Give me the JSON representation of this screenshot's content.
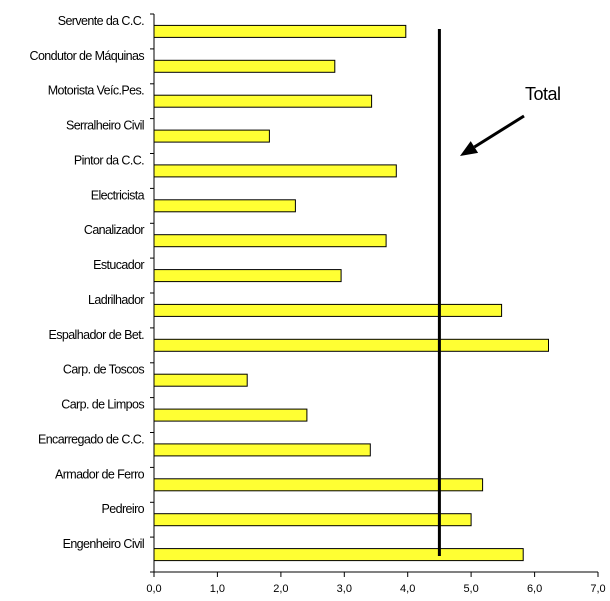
{
  "chart_data": {
    "type": "bar",
    "orientation": "horizontal",
    "categories": [
      "Servente da C.C.",
      "Condutor de Máquinas",
      "Motorista Veíc.Pes.",
      "Serralheiro Civil",
      "Pintor da C.C.",
      "Electricista",
      "Canalizador",
      "Estucador",
      "Ladrilhador",
      "Espalhador de Bet.",
      "Carp. de Toscos",
      "Carp. de Limpos",
      "Encarregado de C.C.",
      "Armador de Ferro",
      "Pedreiro",
      "Engenheiro Civil"
    ],
    "values": [
      3.97,
      2.85,
      3.43,
      1.82,
      3.82,
      2.23,
      3.66,
      2.95,
      5.48,
      6.22,
      1.47,
      2.41,
      3.41,
      5.18,
      5.0,
      5.82
    ],
    "xlim": [
      0,
      7
    ],
    "xticks": [
      "0,0",
      "1,0",
      "2,0",
      "3,0",
      "4,0",
      "5,0",
      "6,0",
      "7,0"
    ],
    "reference_line": {
      "label": "Total",
      "value": 4.5
    },
    "bar_color": "#ffff33",
    "bar_edge_color": "#000000",
    "grid": false,
    "legend": "none"
  }
}
